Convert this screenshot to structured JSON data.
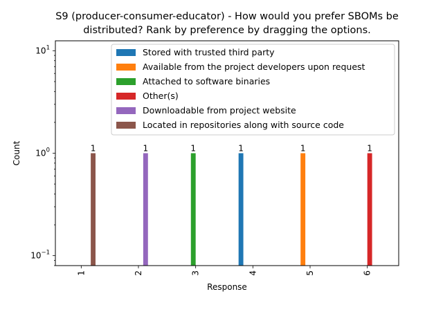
{
  "chart_data": {
    "type": "bar",
    "title": "S9 (producer-consumer-educator) - How would you prefer SBOMs be distributed? Rank by preference by dragging the options.",
    "title_lines": [
      "S9 (producer-consumer-educator) - How would you prefer SBOMs be",
      "distributed? Rank by preference by dragging the options."
    ],
    "xlabel": "Response",
    "ylabel": "Count",
    "yscale": "log",
    "ylim": [
      0.08,
      12.5
    ],
    "yticks": [
      {
        "value": 0.1,
        "base": "10",
        "exp": "−1"
      },
      {
        "value": 1,
        "base": "10",
        "exp": "0"
      },
      {
        "value": 10,
        "base": "10",
        "exp": "1"
      }
    ],
    "categories": [
      "1",
      "2",
      "3",
      "4",
      "5",
      "6"
    ],
    "legend_position": "top-right",
    "grid": false,
    "series": [
      {
        "name": "Stored with trusted third party",
        "color": "#1f77b4",
        "values": [
          0,
          0,
          0,
          1,
          0,
          0
        ]
      },
      {
        "name": "Available from the project developers upon request",
        "color": "#ff7f0e",
        "values": [
          0,
          0,
          0,
          0,
          1,
          0
        ]
      },
      {
        "name": "Attached to software binaries",
        "color": "#2ca02c",
        "values": [
          0,
          0,
          1,
          0,
          0,
          0
        ]
      },
      {
        "name": "Other(s)",
        "color": "#d62728",
        "values": [
          0,
          0,
          0,
          0,
          0,
          1
        ]
      },
      {
        "name": "Downloadable from project website",
        "color": "#9467bd",
        "values": [
          0,
          1,
          0,
          0,
          0,
          0
        ]
      },
      {
        "name": "Located in repositories along with source code",
        "color": "#8c564b",
        "values": [
          1,
          0,
          0,
          0,
          0,
          0
        ]
      }
    ]
  }
}
